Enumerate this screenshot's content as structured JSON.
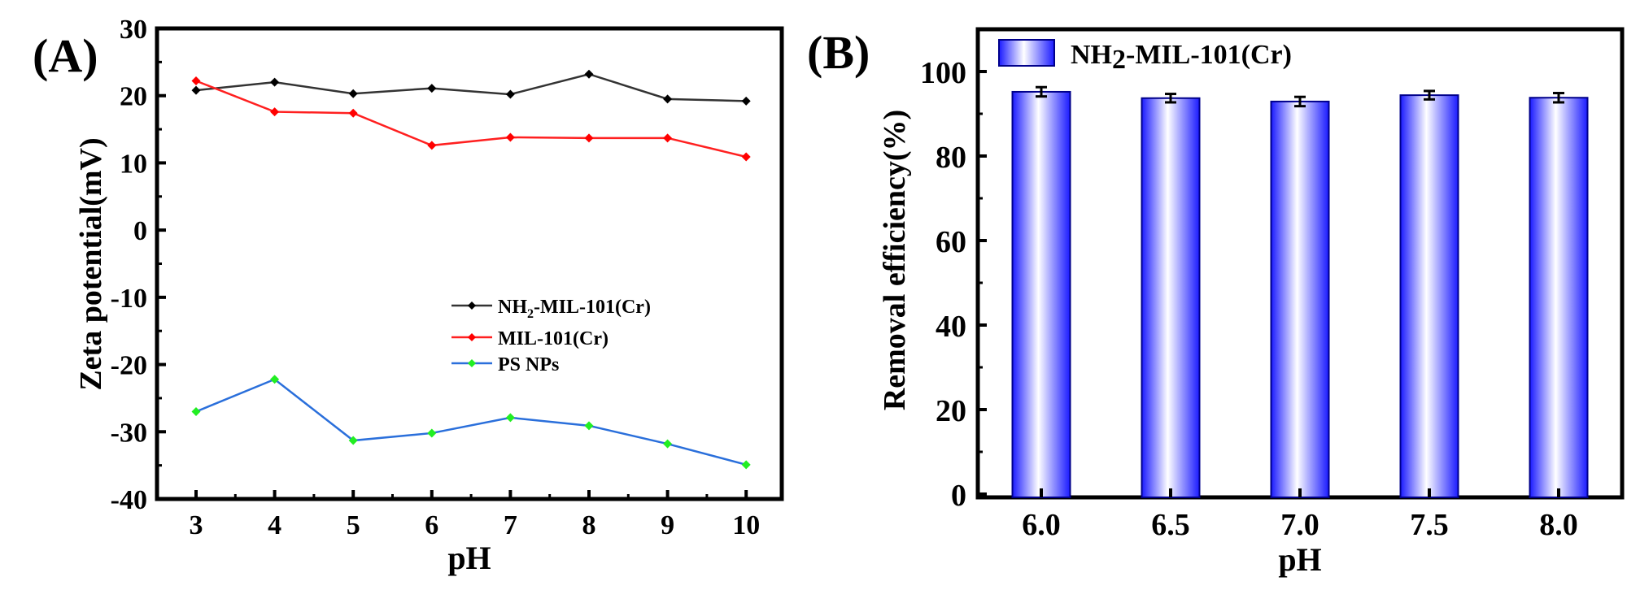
{
  "chart_data": [
    {
      "panel_label": "(A)",
      "type": "line",
      "title": "",
      "xlabel": "pH",
      "ylabel": "Zeta potential(mV)",
      "xlim": [
        2.5,
        10.5
      ],
      "ylim": [
        -40,
        30
      ],
      "x_ticks": [
        "3",
        "4",
        "5",
        "6",
        "7",
        "8",
        "9",
        "10"
      ],
      "y_ticks": [
        "-40",
        "-30",
        "-20",
        "-10",
        "0",
        "10",
        "20",
        "30"
      ],
      "x": [
        3,
        4,
        5,
        6,
        7,
        8,
        9,
        10
      ],
      "legend_position": "center-right",
      "grid": false,
      "series": [
        {
          "name": "NH2-MIL-101(Cr)",
          "name_main": "NH",
          "name_sub": "2",
          "name_rest": "-MIL-101(Cr)",
          "line_color": "#333333",
          "marker_color": "#000000",
          "values": [
            20.8,
            22.0,
            20.3,
            21.1,
            20.2,
            23.2,
            19.5,
            19.2
          ]
        },
        {
          "name": "MIL-101(Cr)",
          "line_color": "#ff2020",
          "marker_color": "#ff0000",
          "values": [
            22.2,
            17.6,
            17.4,
            12.6,
            13.8,
            13.7,
            13.7,
            10.9
          ]
        },
        {
          "name": "PS NPs",
          "line_color": "#2a6fdb",
          "marker_color": "#22ee22",
          "values": [
            -27.0,
            -22.2,
            -31.3,
            -30.2,
            -27.9,
            -29.1,
            -31.8,
            -34.9
          ]
        }
      ]
    },
    {
      "panel_label": "(B)",
      "type": "bar",
      "title": "",
      "xlabel": "pH",
      "ylabel": "Removal efficiency(%)",
      "ylim": [
        0,
        110
      ],
      "categories": [
        "6.0",
        "6.5",
        "7.0",
        "7.5",
        "8.0"
      ],
      "y_ticks": [
        "0",
        "20",
        "40",
        "60",
        "80",
        "100"
      ],
      "legend_position": "top-left",
      "grid": false,
      "series": [
        {
          "name": "NH2-MIL-101(Cr)",
          "name_main": "NH",
          "name_sub": "2",
          "name_rest": "-MIL-101(Cr)",
          "color": "#1a1aff",
          "values": [
            95.2,
            93.7,
            92.9,
            94.4,
            93.8
          ],
          "errors": [
            1.1,
            1.0,
            1.1,
            1.0,
            1.1
          ]
        }
      ]
    }
  ]
}
